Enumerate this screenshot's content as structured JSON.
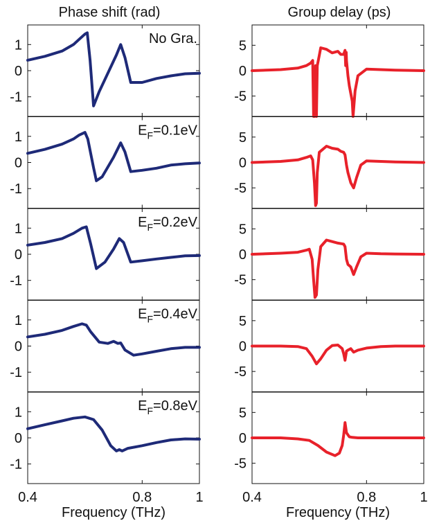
{
  "chart_data": {
    "type": "line",
    "columns": [
      {
        "title": "Phase shift (rad)",
        "color": "#1e2a78",
        "yticks": [
          -1,
          0,
          1
        ],
        "ylim": [
          -1.75,
          1.75
        ],
        "xlabel": "Frequency (THz)",
        "xticks": [
          0.4,
          0.8,
          1
        ],
        "xlim": [
          0.4,
          1.0
        ],
        "panels": [
          {
            "annotation_main": "No Gra.",
            "annotation_sub": "",
            "annotation_tail": "",
            "x": [
              0.4,
              0.46,
              0.52,
              0.56,
              0.58,
              0.6,
              0.608,
              0.618,
              0.63,
              0.65,
              0.68,
              0.71,
              0.725,
              0.74,
              0.76,
              0.8,
              0.85,
              0.9,
              0.95,
              1.0
            ],
            "y": [
              0.4,
              0.55,
              0.75,
              1.0,
              1.2,
              1.4,
              1.45,
              0.4,
              -1.35,
              -0.8,
              -0.1,
              0.6,
              1.0,
              0.5,
              -0.45,
              -0.45,
              -0.3,
              -0.2,
              -0.12,
              -0.1
            ]
          },
          {
            "annotation_main": "E",
            "annotation_sub": "F",
            "annotation_tail": "=0.1eV",
            "x": [
              0.4,
              0.46,
              0.52,
              0.56,
              0.58,
              0.6,
              0.61,
              0.63,
              0.64,
              0.66,
              0.7,
              0.725,
              0.74,
              0.76,
              0.8,
              0.85,
              0.9,
              0.95,
              1.0
            ],
            "y": [
              0.35,
              0.5,
              0.7,
              0.9,
              1.05,
              1.15,
              0.9,
              -0.2,
              -0.7,
              -0.55,
              0.2,
              0.75,
              0.4,
              -0.35,
              -0.3,
              -0.22,
              -0.1,
              -0.05,
              -0.02
            ]
          },
          {
            "annotation_main": "E",
            "annotation_sub": "F",
            "annotation_tail": "=0.2eV",
            "x": [
              0.4,
              0.46,
              0.52,
              0.56,
              0.59,
              0.605,
              0.62,
              0.64,
              0.67,
              0.7,
              0.72,
              0.735,
              0.76,
              0.8,
              0.85,
              0.9,
              0.95,
              1.0
            ],
            "y": [
              0.35,
              0.45,
              0.6,
              0.8,
              1.0,
              1.05,
              0.4,
              -0.55,
              -0.3,
              0.2,
              0.6,
              0.45,
              -0.3,
              -0.25,
              -0.18,
              -0.12,
              -0.06,
              -0.05
            ]
          },
          {
            "annotation_main": "E",
            "annotation_sub": "F",
            "annotation_tail": "=0.4eV",
            "x": [
              0.4,
              0.46,
              0.52,
              0.56,
              0.59,
              0.605,
              0.62,
              0.65,
              0.68,
              0.7,
              0.715,
              0.725,
              0.74,
              0.77,
              0.8,
              0.85,
              0.9,
              0.95,
              1.0
            ],
            "y": [
              0.35,
              0.45,
              0.6,
              0.75,
              0.85,
              0.8,
              0.55,
              0.15,
              0.1,
              0.18,
              0.1,
              0.12,
              -0.15,
              -0.35,
              -0.3,
              -0.2,
              -0.1,
              -0.05,
              -0.05
            ]
          },
          {
            "annotation_main": "E",
            "annotation_sub": "F",
            "annotation_tail": "=0.8eV",
            "x": [
              0.4,
              0.46,
              0.52,
              0.56,
              0.6,
              0.63,
              0.66,
              0.69,
              0.71,
              0.72,
              0.73,
              0.75,
              0.8,
              0.85,
              0.9,
              0.95,
              1.0
            ],
            "y": [
              0.35,
              0.5,
              0.65,
              0.75,
              0.8,
              0.7,
              0.3,
              -0.3,
              -0.5,
              -0.45,
              -0.5,
              -0.4,
              -0.3,
              -0.18,
              -0.08,
              -0.04,
              -0.05
            ]
          }
        ]
      },
      {
        "title": "Group delay (ps)",
        "color": "#e8212a",
        "yticks": [
          -5,
          0,
          5
        ],
        "ylim": [
          -9,
          9
        ],
        "xlabel": "Frequency (THz)",
        "xticks": [
          0.4,
          0.8,
          1
        ],
        "xlim": [
          0.4,
          1.0
        ],
        "panels": [
          {
            "x": [
              0.4,
              0.5,
              0.56,
              0.59,
              0.605,
              0.612,
              0.615,
              0.618,
              0.622,
              0.625,
              0.628,
              0.635,
              0.64,
              0.66,
              0.68,
              0.7,
              0.71,
              0.72,
              0.725,
              0.727,
              0.729,
              0.73,
              0.735,
              0.74,
              0.75,
              0.753,
              0.76,
              0.77,
              0.8,
              0.85,
              0.9,
              1.0
            ],
            "y": [
              0.0,
              0.2,
              0.5,
              1.0,
              1.5,
              2.0,
              -9.0,
              -9.0,
              1.0,
              -9.0,
              1.0,
              3.0,
              4.5,
              4.2,
              3.5,
              3.8,
              3.2,
              3.2,
              4.0,
              1.0,
              3.6,
              2.0,
              -1.0,
              -3.0,
              -6.0,
              -9.0,
              -4.0,
              -1.0,
              0.3,
              0.2,
              0.1,
              0.0
            ]
          },
          {
            "x": [
              0.4,
              0.5,
              0.56,
              0.59,
              0.605,
              0.612,
              0.618,
              0.622,
              0.625,
              0.628,
              0.635,
              0.66,
              0.68,
              0.7,
              0.71,
              0.72,
              0.725,
              0.73,
              0.735,
              0.745,
              0.755,
              0.765,
              0.78,
              0.8,
              0.85,
              0.9,
              1.0
            ],
            "y": [
              0.0,
              0.2,
              0.5,
              1.0,
              1.3,
              0.5,
              -4.0,
              -8.5,
              -8.0,
              -2.0,
              2.0,
              3.2,
              2.8,
              2.6,
              2.2,
              2.0,
              1.5,
              -0.5,
              -2.0,
              -4.0,
              -5.0,
              -3.0,
              -0.5,
              0.3,
              0.2,
              0.1,
              0.0
            ]
          },
          {
            "x": [
              0.4,
              0.5,
              0.56,
              0.59,
              0.6,
              0.61,
              0.615,
              0.62,
              0.625,
              0.63,
              0.64,
              0.66,
              0.68,
              0.7,
              0.72,
              0.725,
              0.73,
              0.735,
              0.745,
              0.755,
              0.765,
              0.78,
              0.8,
              0.85,
              0.9,
              1.0
            ],
            "y": [
              0.0,
              0.2,
              0.4,
              0.8,
              1.0,
              -1.0,
              -5.0,
              -8.5,
              -8.0,
              -3.0,
              1.5,
              2.8,
              2.5,
              2.2,
              2.0,
              1.5,
              -1.0,
              -2.0,
              -2.5,
              -4.0,
              -2.5,
              -0.5,
              0.2,
              0.1,
              0.05,
              0.0
            ]
          },
          {
            "x": [
              0.4,
              0.5,
              0.56,
              0.59,
              0.61,
              0.625,
              0.64,
              0.66,
              0.68,
              0.7,
              0.715,
              0.72,
              0.725,
              0.73,
              0.735,
              0.745,
              0.755,
              0.77,
              0.8,
              0.85,
              0.9,
              1.0
            ],
            "y": [
              0.0,
              0.0,
              -0.1,
              -0.5,
              -2.0,
              -3.5,
              -2.5,
              -0.8,
              0.1,
              0.2,
              -0.5,
              -1.5,
              -2.8,
              -1.0,
              -0.8,
              -0.5,
              -1.2,
              -0.8,
              -0.4,
              -0.1,
              0.0,
              0.0
            ]
          },
          {
            "x": [
              0.4,
              0.5,
              0.56,
              0.6,
              0.63,
              0.66,
              0.69,
              0.705,
              0.715,
              0.72,
              0.725,
              0.73,
              0.74,
              0.75,
              0.77,
              0.8,
              0.85,
              0.9,
              1.0
            ],
            "y": [
              0.0,
              0.0,
              -0.2,
              -0.5,
              -1.5,
              -2.8,
              -3.5,
              -3.0,
              -1.5,
              0.5,
              3.0,
              1.0,
              0.2,
              0.1,
              0.0,
              0.0,
              0.0,
              0.0,
              0.0
            ]
          }
        ]
      }
    ]
  }
}
